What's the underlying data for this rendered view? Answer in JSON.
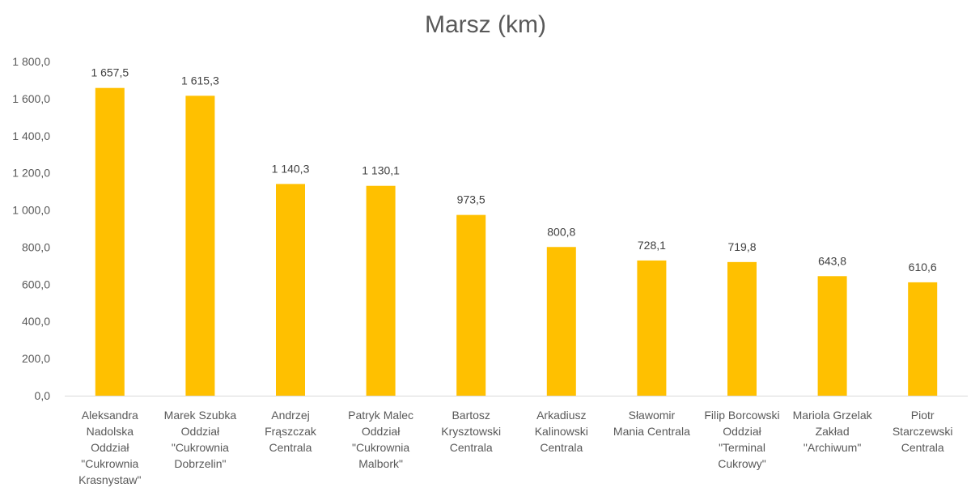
{
  "chart_data": {
    "type": "bar",
    "title": "Marsz (km)",
    "xlabel": "",
    "ylabel": "",
    "ylim": [
      0,
      1800
    ],
    "yticks": [
      "0,0",
      "200,0",
      "400,0",
      "600,0",
      "800,0",
      "1 000,0",
      "1 200,0",
      "1 400,0",
      "1 600,0",
      "1 800,0"
    ],
    "grid": false,
    "legend": "none",
    "bar_color": "#FFC000",
    "categories": [
      [
        "Aleksandra",
        "Nadolska",
        "Oddział",
        "\"Cukrownia",
        "Krasnystaw\""
      ],
      [
        "Marek Szubka",
        "Oddział",
        "\"Cukrownia",
        "Dobrzelin\""
      ],
      [
        "Andrzej",
        "Frąszczak",
        "Centrala"
      ],
      [
        "Patryk Malec",
        "Oddział",
        "\"Cukrownia",
        "Malbork\""
      ],
      [
        "Bartosz",
        "Krysztowski",
        "Centrala"
      ],
      [
        "Arkadiusz",
        "Kalinowski",
        "Centrala"
      ],
      [
        "Sławomir",
        "Mania Centrala"
      ],
      [
        "Filip Borcowski",
        "Oddział",
        "\"Terminal",
        "Cukrowy\""
      ],
      [
        "Mariola Grzelak",
        "Zakład",
        "\"Archiwum\""
      ],
      [
        "Piotr",
        "Starczewski",
        "Centrala"
      ]
    ],
    "values": [
      1657.5,
      1615.3,
      1140.3,
      1130.1,
      973.5,
      800.8,
      728.1,
      719.8,
      643.8,
      610.6
    ],
    "value_labels": [
      "1 657,5",
      "1 615,3",
      "1 140,3",
      "1 130,1",
      "973,5",
      "800,8",
      "728,1",
      "719,8",
      "643,8",
      "610,6"
    ]
  }
}
